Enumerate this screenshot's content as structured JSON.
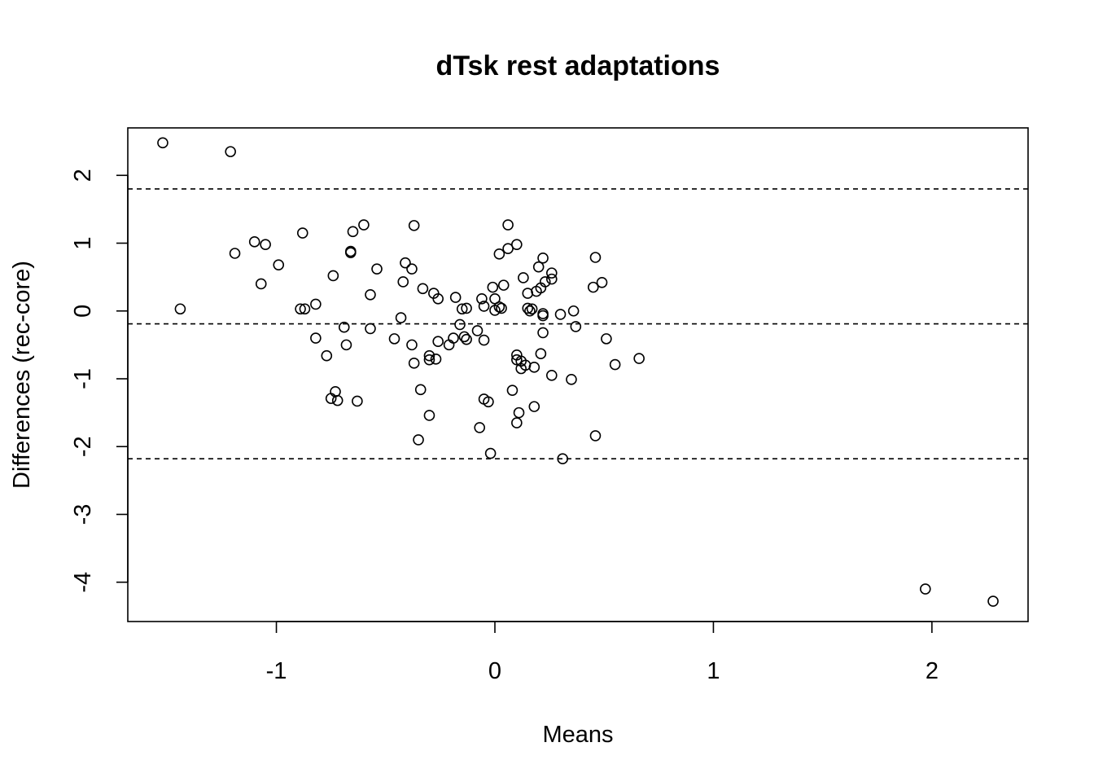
{
  "chart_data": {
    "type": "scatter",
    "title": "dTsk rest adaptations",
    "xlabel": "Means",
    "ylabel": "Differences (rec-core)",
    "xlim": [
      -1.68,
      2.44
    ],
    "ylim": [
      -4.58,
      2.7
    ],
    "xticks": [
      -1,
      0,
      1,
      2
    ],
    "xtick_labels": [
      "-1",
      "0",
      "1",
      "2"
    ],
    "yticks": [
      -4,
      -3,
      -2,
      -1,
      0,
      1,
      2
    ],
    "ytick_labels": [
      "-4",
      "-3",
      "-2",
      "-1",
      "0",
      "1",
      "2"
    ],
    "grid": false,
    "legend": "none",
    "reference_lines": [
      {
        "name": "upper-limit",
        "y": 1.8
      },
      {
        "name": "mean-difference",
        "y": -0.19
      },
      {
        "name": "lower-limit",
        "y": -2.18
      }
    ],
    "points": [
      [
        -1.52,
        2.48
      ],
      [
        -1.21,
        2.35
      ],
      [
        -1.44,
        0.03
      ],
      [
        -1.19,
        0.85
      ],
      [
        -1.1,
        1.02
      ],
      [
        -1.05,
        0.98
      ],
      [
        -1.07,
        0.4
      ],
      [
        -0.99,
        0.68
      ],
      [
        -0.88,
        1.15
      ],
      [
        -0.89,
        0.03
      ],
      [
        -0.87,
        0.03
      ],
      [
        -0.82,
        0.1
      ],
      [
        -0.82,
        -0.4
      ],
      [
        -0.77,
        -0.66
      ],
      [
        -0.75,
        -1.29
      ],
      [
        -0.73,
        -1.19
      ],
      [
        -0.72,
        -1.32
      ],
      [
        -0.74,
        0.52
      ],
      [
        -0.69,
        -0.24
      ],
      [
        -0.68,
        -0.5
      ],
      [
        -0.66,
        0.86
      ],
      [
        -0.66,
        0.88
      ],
      [
        -0.65,
        1.17
      ],
      [
        -0.6,
        1.27
      ],
      [
        -0.63,
        -1.33
      ],
      [
        -0.57,
        0.24
      ],
      [
        -0.57,
        -0.26
      ],
      [
        -0.54,
        0.62
      ],
      [
        -0.46,
        -0.41
      ],
      [
        -0.43,
        -0.1
      ],
      [
        -0.42,
        0.43
      ],
      [
        -0.41,
        0.71
      ],
      [
        -0.38,
        0.62
      ],
      [
        -0.37,
        1.26
      ],
      [
        -0.38,
        -0.5
      ],
      [
        -0.37,
        -0.77
      ],
      [
        -0.35,
        -1.9
      ],
      [
        -0.34,
        -1.16
      ],
      [
        -0.33,
        0.33
      ],
      [
        -0.3,
        -0.66
      ],
      [
        -0.3,
        -0.72
      ],
      [
        -0.3,
        -1.54
      ],
      [
        -0.28,
        0.26
      ],
      [
        -0.26,
        0.18
      ],
      [
        -0.26,
        -0.45
      ],
      [
        -0.27,
        -0.71
      ],
      [
        -0.21,
        -0.5
      ],
      [
        -0.19,
        -0.4
      ],
      [
        -0.18,
        0.2
      ],
      [
        -0.16,
        -0.2
      ],
      [
        -0.15,
        0.03
      ],
      [
        -0.13,
        0.04
      ],
      [
        -0.14,
        -0.38
      ],
      [
        -0.13,
        -0.42
      ],
      [
        -0.08,
        -0.29
      ],
      [
        -0.07,
        -1.72
      ],
      [
        -0.06,
        0.18
      ],
      [
        -0.05,
        0.07
      ],
      [
        -0.05,
        -1.3
      ],
      [
        -0.05,
        -0.43
      ],
      [
        -0.03,
        -1.34
      ],
      [
        -0.02,
        -2.1
      ],
      [
        -0.01,
        0.35
      ],
      [
        0.0,
        0.18
      ],
      [
        0.0,
        0.01
      ],
      [
        0.02,
        0.06
      ],
      [
        0.03,
        0.04
      ],
      [
        0.02,
        0.84
      ],
      [
        0.04,
        0.38
      ],
      [
        0.06,
        0.92
      ],
      [
        0.06,
        1.27
      ],
      [
        0.08,
        -1.17
      ],
      [
        0.1,
        -0.65
      ],
      [
        0.1,
        -0.72
      ],
      [
        0.1,
        0.98
      ],
      [
        0.1,
        -1.65
      ],
      [
        0.11,
        -1.5
      ],
      [
        0.12,
        -0.74
      ],
      [
        0.12,
        -0.85
      ],
      [
        0.13,
        0.49
      ],
      [
        0.14,
        -0.8
      ],
      [
        0.15,
        0.26
      ],
      [
        0.15,
        0.04
      ],
      [
        0.16,
        0.0
      ],
      [
        0.17,
        0.03
      ],
      [
        0.18,
        -0.83
      ],
      [
        0.18,
        -1.41
      ],
      [
        0.19,
        0.29
      ],
      [
        0.2,
        0.65
      ],
      [
        0.21,
        0.34
      ],
      [
        0.21,
        -0.63
      ],
      [
        0.22,
        -0.04
      ],
      [
        0.22,
        -0.07
      ],
      [
        0.22,
        -0.32
      ],
      [
        0.22,
        0.78
      ],
      [
        0.23,
        0.43
      ],
      [
        0.26,
        -0.95
      ],
      [
        0.26,
        0.56
      ],
      [
        0.26,
        0.47
      ],
      [
        0.3,
        -0.05
      ],
      [
        0.31,
        -2.18
      ],
      [
        0.35,
        -1.01
      ],
      [
        0.36,
        0.0
      ],
      [
        0.37,
        -0.23
      ],
      [
        0.45,
        0.35
      ],
      [
        0.46,
        0.79
      ],
      [
        0.46,
        -1.84
      ],
      [
        0.49,
        0.42
      ],
      [
        0.51,
        -0.41
      ],
      [
        0.55,
        -0.79
      ],
      [
        0.66,
        -0.7
      ],
      [
        1.97,
        -4.1
      ],
      [
        2.28,
        -4.28
      ]
    ]
  }
}
